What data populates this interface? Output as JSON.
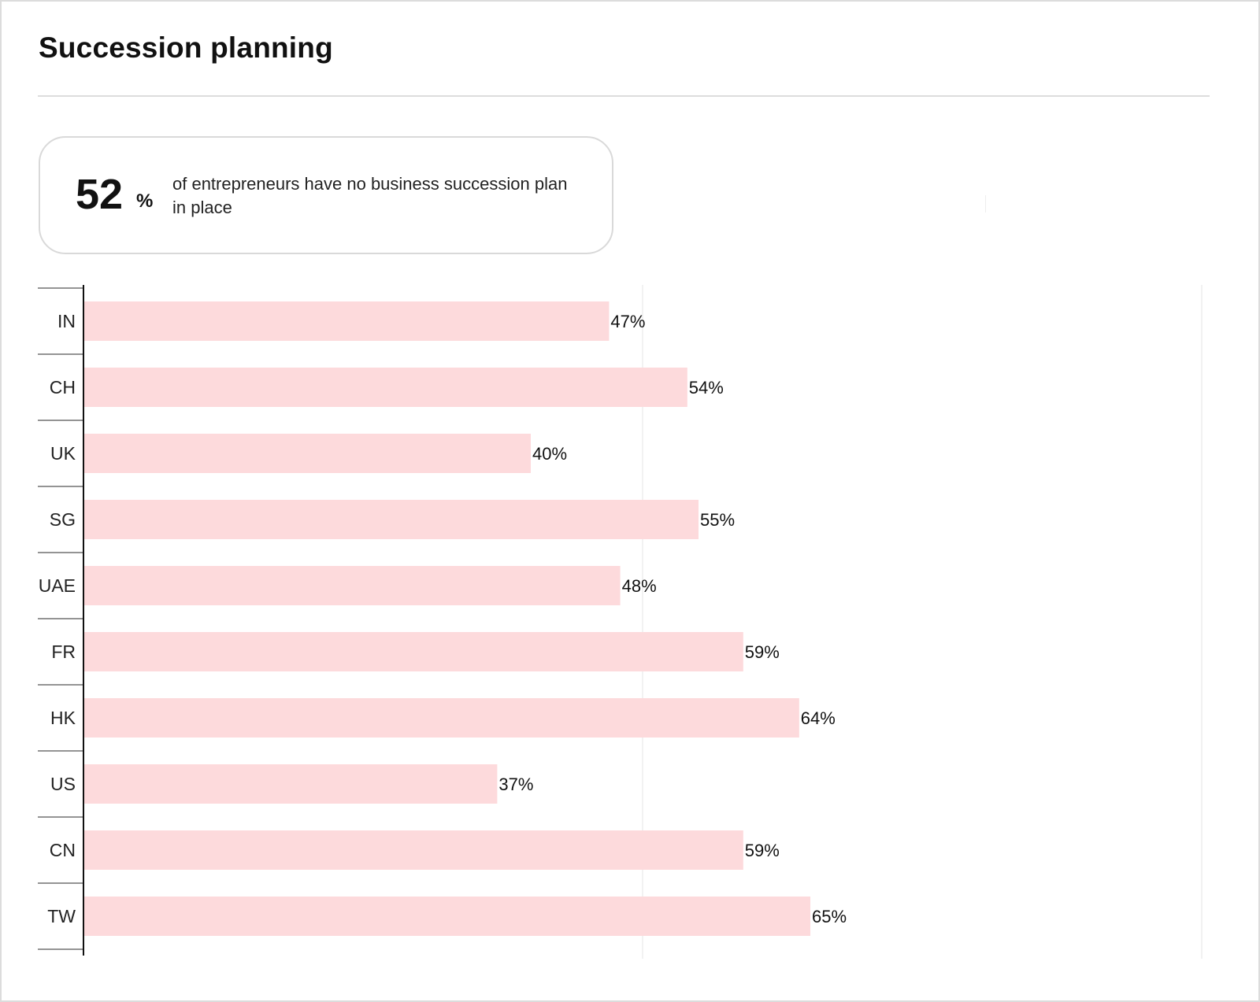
{
  "title": "Succession planning",
  "stat": {
    "value": "52",
    "unit": "%",
    "text": "of entrepreneurs have no business succession plan in place"
  },
  "colors": {
    "bar": "#fddadc",
    "axis": "#111111",
    "grid": "#eeeeee"
  },
  "chart_data": {
    "type": "bar",
    "orientation": "horizontal",
    "categories": [
      "IN",
      "CH",
      "UK",
      "SG",
      "UAE",
      "FR",
      "HK",
      "US",
      "CN",
      "TW"
    ],
    "values": [
      47,
      54,
      40,
      55,
      48,
      59,
      64,
      37,
      59,
      65
    ],
    "value_labels": [
      "47%",
      "54%",
      "40%",
      "55%",
      "48%",
      "59%",
      "64%",
      "37%",
      "59%",
      "65%"
    ],
    "xlim": [
      0,
      100
    ],
    "grid": true,
    "legend": "none"
  }
}
